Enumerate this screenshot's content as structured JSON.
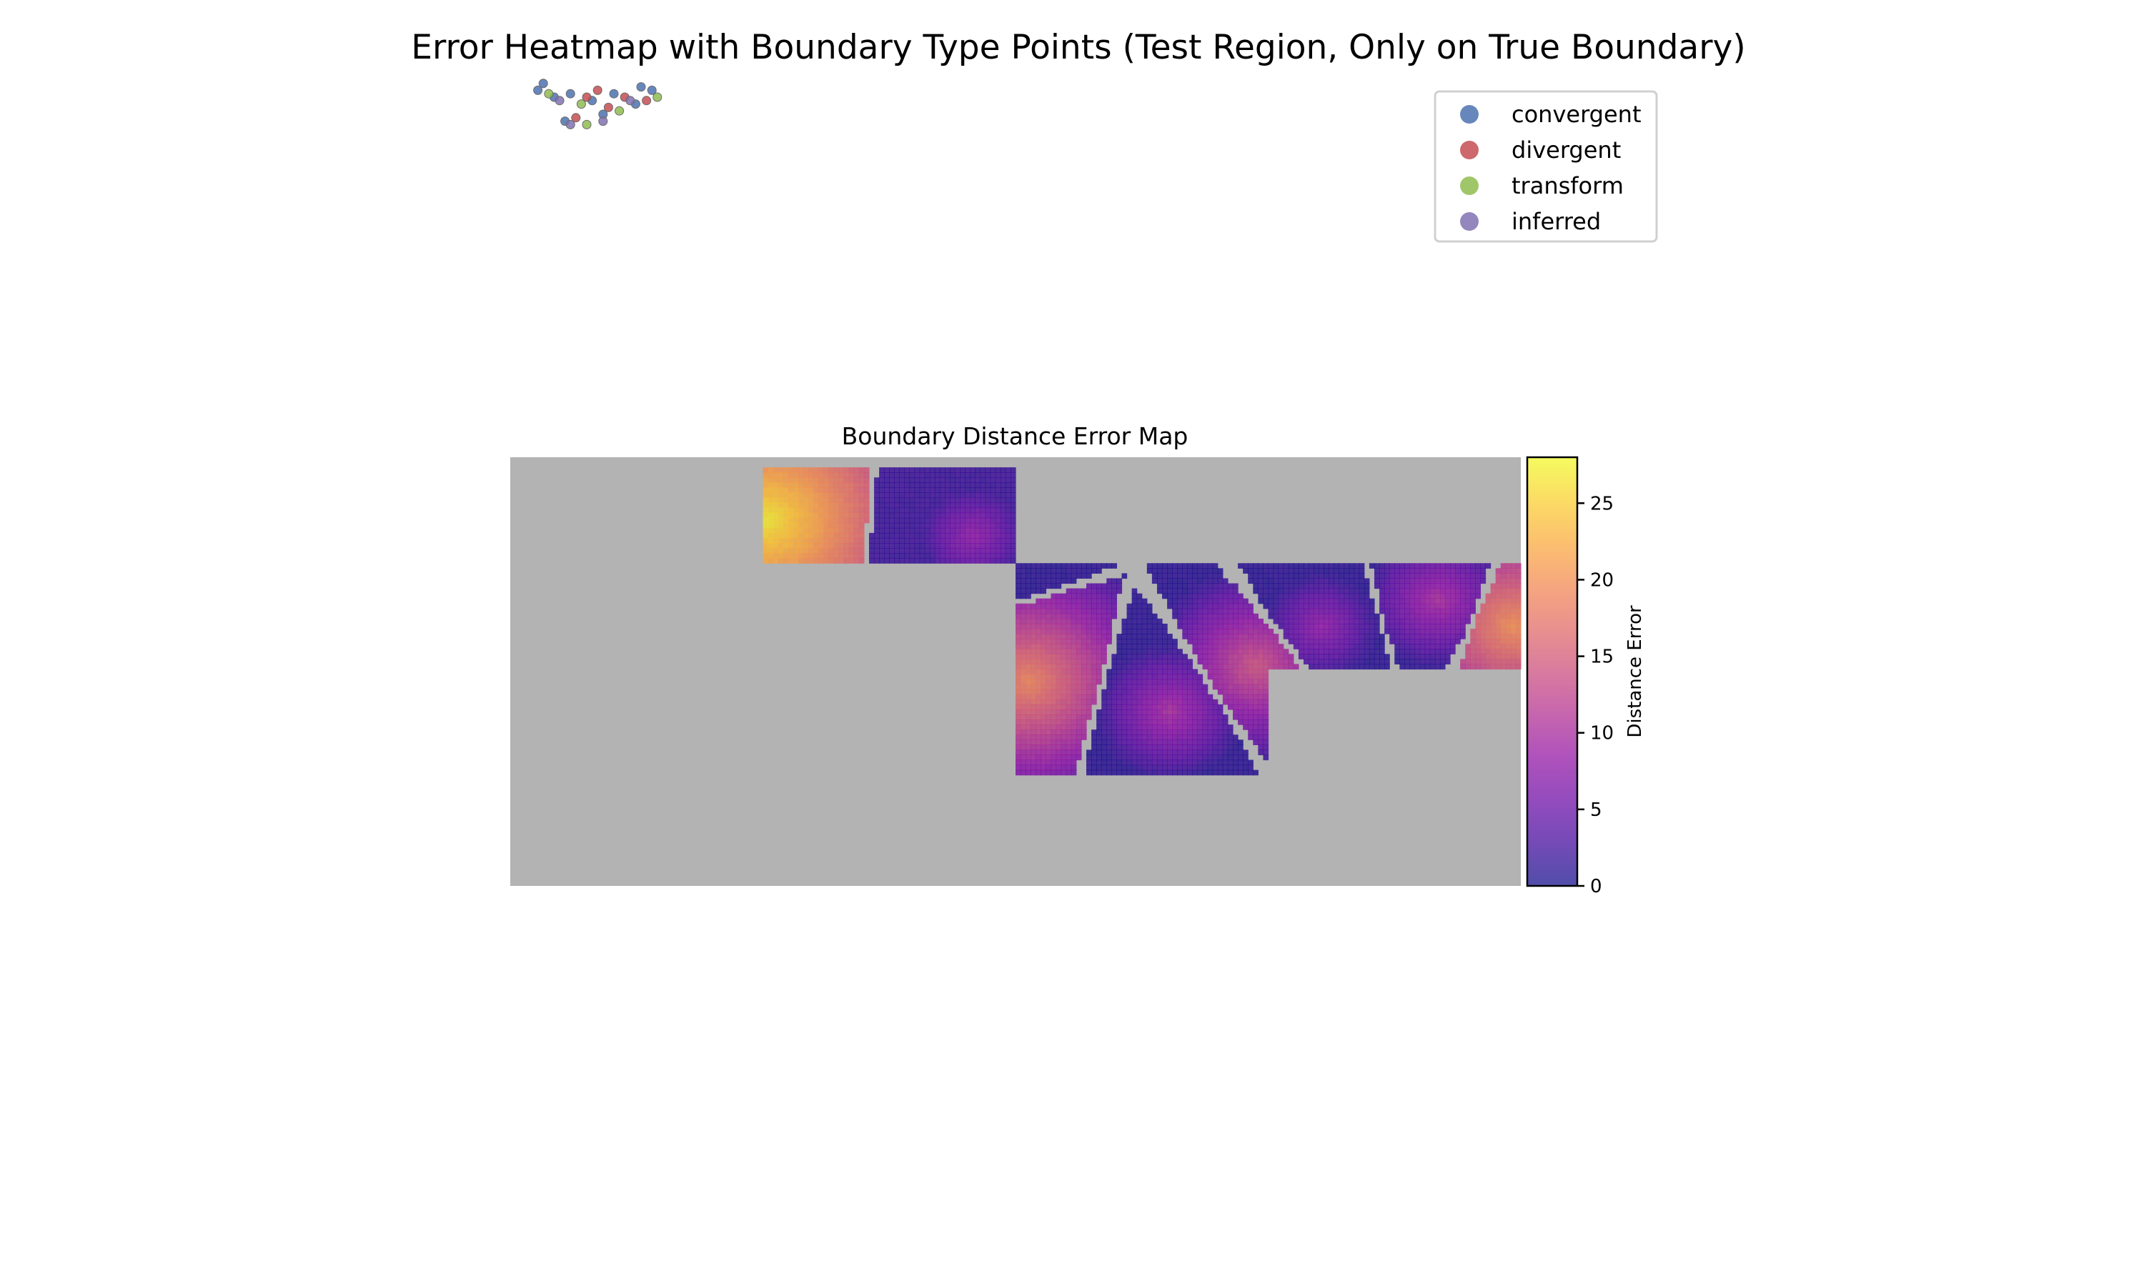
{
  "figure": {
    "title": "Error Heatmap with Boundary Type Points (Test Region, Only on True Boundary)"
  },
  "legend": {
    "placement": "top-right",
    "entries": [
      {
        "label": "convergent",
        "color": "#4c72b0"
      },
      {
        "label": "divergent",
        "color": "#c44e52"
      },
      {
        "label": "transform",
        "color": "#8fbc50"
      },
      {
        "label": "inferred",
        "color": "#8172b2"
      }
    ]
  },
  "chart_data": [
    {
      "type": "heatmap",
      "title": "Boundary Distance Error Map",
      "colormap": "plasma",
      "nan_color": "#b3b3b3",
      "colorbar": {
        "label": "Distance Error",
        "range": [
          0,
          28
        ],
        "ticks": [
          0,
          5,
          10,
          15,
          20,
          25
        ]
      },
      "grid_size": [
        200,
        85
      ],
      "regions": [
        {
          "cells": [
            50,
            2,
            100,
            21
          ],
          "value_range": [
            2,
            27
          ]
        },
        {
          "cells": [
            100,
            21,
            200,
            42
          ],
          "value_range": [
            1,
            20
          ]
        },
        {
          "cells": [
            100,
            42,
            150,
            63
          ],
          "value_range": [
            1,
            19
          ]
        }
      ],
      "hotspots": [
        {
          "cell": [
            50,
            12
          ],
          "value": 27
        },
        {
          "cell": [
            102,
            44
          ],
          "value": 19
        },
        {
          "cell": [
            198,
            33
          ],
          "value": 20
        },
        {
          "cell": [
            147,
            41
          ],
          "value": 14
        },
        {
          "cell": [
            130,
            50
          ],
          "value": 10
        },
        {
          "cell": [
            183,
            28
          ],
          "value": 10
        },
        {
          "cell": [
            91,
            15
          ],
          "value": 8
        },
        {
          "cell": [
            160,
            33
          ],
          "value": 8
        }
      ]
    },
    {
      "type": "scatter",
      "title": "",
      "series": [
        {
          "name": "convergent",
          "points": [
            [
              2,
              6
            ],
            [
              4,
              2
            ],
            [
              8,
              10
            ],
            [
              14,
              8
            ],
            [
              22,
              12
            ],
            [
              30,
              8
            ],
            [
              38,
              14
            ],
            [
              44,
              6
            ],
            [
              12,
              24
            ],
            [
              26,
              20
            ],
            [
              40,
              4
            ]
          ]
        },
        {
          "name": "divergent",
          "points": [
            [
              20,
              10
            ],
            [
              28,
              16
            ],
            [
              34,
              10
            ],
            [
              42,
              12
            ],
            [
              16,
              22
            ],
            [
              24,
              6
            ]
          ]
        },
        {
          "name": "transform",
          "points": [
            [
              6,
              8
            ],
            [
              18,
              14
            ],
            [
              32,
              18
            ],
            [
              46,
              10
            ],
            [
              20,
              26
            ]
          ]
        },
        {
          "name": "inferred",
          "points": [
            [
              10,
              12
            ],
            [
              36,
              12
            ],
            [
              26,
              24
            ],
            [
              14,
              26
            ]
          ]
        }
      ]
    }
  ]
}
